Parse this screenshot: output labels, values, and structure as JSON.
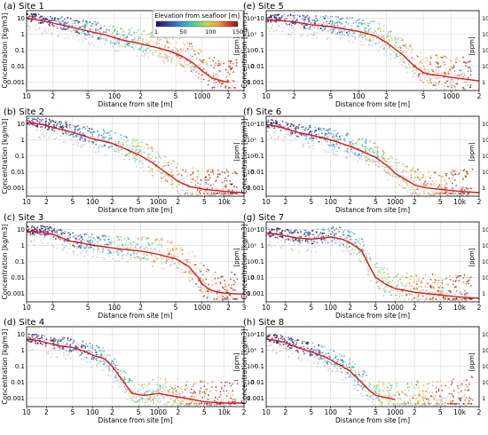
{
  "figure": {
    "colorbar": {
      "title": "Elevation from seafloor [m]",
      "ticks": [
        "1",
        "50",
        "100",
        "150"
      ],
      "colors": [
        "#2a0d4e",
        "#3b3f9a",
        "#2f7fc1",
        "#35b6c8",
        "#60d18f",
        "#c9d84a",
        "#f0a43a",
        "#d9472b",
        "#8b1a1a"
      ]
    },
    "colors": {
      "mean_line": "#e3141b",
      "background_scatter": "#a9a9a9",
      "grid": "#d9d9d9"
    }
  },
  "chart_data": [
    {
      "panel": "a",
      "title": "(a) Site 1",
      "type": "scatter",
      "xlabel": "Distance from site [m]",
      "ylabel": "Concentration [kg/m3]",
      "ylabel_right": "[ppm]",
      "x_scale": "log",
      "xlim": [
        10,
        3000
      ],
      "y_scale": "log",
      "ylim": [
        0.0003,
        30
      ],
      "x_ticks": [
        "10",
        "2",
        "5",
        "100",
        "2",
        "5",
        "1000",
        "2",
        "3"
      ],
      "y_ticks": [
        "10",
        "1",
        "0.1",
        "0.01",
        "0.001"
      ],
      "y_ticks_right": [
        "10⁴",
        "10³",
        "10²",
        "10",
        "1"
      ],
      "mean_line": {
        "x": [
          10,
          12,
          15,
          20,
          30,
          50,
          80,
          120,
          200,
          300,
          450,
          600,
          800,
          1000,
          1300,
          1700,
          2000
        ],
        "y": [
          10,
          9,
          7,
          5,
          3,
          1.6,
          0.9,
          0.45,
          0.25,
          0.15,
          0.08,
          0.04,
          0.015,
          0.005,
          0.0018,
          0.0012,
          0.001
        ]
      }
    },
    {
      "panel": "b",
      "title": "(b) Site 2",
      "type": "scatter",
      "xlabel": "Distance from site [m]",
      "ylabel": "Concentration [kg/m3]",
      "ylabel_right": "[ppm]",
      "x_scale": "log",
      "xlim": [
        10,
        20000
      ],
      "y_scale": "log",
      "ylim": [
        0.0003,
        30
      ],
      "x_ticks": [
        "10",
        "2",
        "5",
        "100",
        "2",
        "5",
        "1000",
        "2",
        "5",
        "10k",
        "2"
      ],
      "y_ticks": [
        "10",
        "1",
        "0.1",
        "0.01",
        "0.001"
      ],
      "y_ticks_right": [
        "10⁴",
        "10³",
        "10²",
        "10",
        "1"
      ],
      "mean_line": {
        "x": [
          10,
          15,
          20,
          30,
          50,
          100,
          200,
          300,
          500,
          800,
          1000,
          1500,
          2000,
          3000,
          5000,
          10000,
          20000
        ],
        "y": [
          12,
          10,
          8,
          5,
          3,
          1.2,
          0.6,
          0.3,
          0.12,
          0.04,
          0.02,
          0.006,
          0.0025,
          0.0012,
          0.0008,
          0.0006,
          0.0005
        ]
      }
    },
    {
      "panel": "c",
      "title": "(c) Site 3",
      "type": "scatter",
      "xlabel": "Distance from site [m]",
      "ylabel": "Concentration [kg/m3]",
      "ylabel_right": "[ppm]",
      "x_scale": "log",
      "xlim": [
        10,
        3000
      ],
      "y_scale": "log",
      "ylim": [
        0.0003,
        30
      ],
      "x_ticks": [
        "10",
        "2",
        "5",
        "100",
        "2",
        "5",
        "1000",
        "2",
        "3"
      ],
      "y_ticks": [
        "10",
        "1",
        "0.1",
        "0.01",
        "0.001"
      ],
      "y_ticks_right": [
        "10⁴",
        "10³",
        "10²",
        "10",
        "1"
      ],
      "mean_line": {
        "x": [
          10,
          15,
          20,
          30,
          50,
          80,
          120,
          200,
          300,
          500,
          700,
          900,
          1000,
          1200,
          1500,
          2000,
          3000
        ],
        "y": [
          8,
          7,
          5,
          2,
          1.2,
          0.8,
          0.6,
          0.45,
          0.3,
          0.15,
          0.05,
          0.01,
          0.004,
          0.0018,
          0.0012,
          0.001,
          0.0009
        ]
      }
    },
    {
      "panel": "d",
      "title": "(d) Site 4",
      "type": "scatter",
      "xlabel": "Distance from site [m]",
      "ylabel": "Concentration [kg/m3]",
      "ylabel_right": "[ppm]",
      "x_scale": "log",
      "xlim": [
        10,
        20000
      ],
      "y_scale": "log",
      "ylim": [
        0.0003,
        30
      ],
      "x_ticks": [
        "10",
        "2",
        "5",
        "100",
        "2",
        "5",
        "1000",
        "2",
        "5",
        "10k",
        "2"
      ],
      "y_ticks": [
        "10",
        "1",
        "0.1",
        "0.01",
        "0.001"
      ],
      "y_ticks_right": [
        "10⁴",
        "10³",
        "10²",
        "10",
        "1"
      ],
      "mean_line": {
        "x": [
          10,
          15,
          20,
          30,
          50,
          80,
          100,
          150,
          200,
          300,
          400,
          600,
          1000,
          2000,
          3000,
          5000,
          10000,
          20000
        ],
        "y": [
          5,
          4,
          3,
          2,
          1.5,
          0.8,
          0.5,
          0.3,
          0.1,
          0.01,
          0.002,
          0.0015,
          0.002,
          0.0012,
          0.0009,
          0.0006,
          0.0005,
          0.0005
        ]
      }
    },
    {
      "panel": "e",
      "title": "(e) Site 5",
      "type": "scatter",
      "xlabel": "Distance from site [m]",
      "ylabel": "Concentration [kg/m3]",
      "ylabel_right": "[ppm]",
      "x_scale": "log",
      "xlim": [
        10,
        2000
      ],
      "y_scale": "log",
      "ylim": [
        0.0003,
        30
      ],
      "x_ticks": [
        "10",
        "2",
        "5",
        "100",
        "2",
        "5",
        "1000",
        "2"
      ],
      "y_ticks": [
        "10",
        "1",
        "0.1",
        "0.01",
        "0.001"
      ],
      "y_ticks_right": [
        "10⁴",
        "10³",
        "10²",
        "10",
        "1"
      ],
      "mean_line": {
        "x": [
          10,
          15,
          20,
          30,
          50,
          100,
          150,
          200,
          300,
          400,
          500,
          600,
          800,
          1000,
          1500,
          2000
        ],
        "y": [
          8,
          7,
          6,
          4,
          3,
          1.5,
          0.8,
          0.3,
          0.05,
          0.01,
          0.004,
          0.003,
          0.0025,
          0.002,
          0.0015,
          0.0012
        ]
      }
    },
    {
      "panel": "f",
      "title": "(f) Site 6",
      "type": "scatter",
      "xlabel": "Distance from site [m]",
      "ylabel": "Concentration [kg/m3]",
      "ylabel_right": "[ppm]",
      "x_scale": "log",
      "xlim": [
        10,
        20000
      ],
      "y_scale": "log",
      "ylim": [
        0.0003,
        30
      ],
      "x_ticks": [
        "10",
        "2",
        "5",
        "100",
        "2",
        "5",
        "1000",
        "2",
        "5",
        "10k",
        "2"
      ],
      "y_ticks": [
        "10",
        "1",
        "0.1",
        "0.01",
        "0.001"
      ],
      "y_ticks_right": [
        "10⁴",
        "10³",
        "10²",
        "10",
        "1"
      ],
      "mean_line": {
        "x": [
          10,
          15,
          20,
          30,
          50,
          100,
          200,
          300,
          500,
          800,
          1000,
          1500,
          2000,
          3000,
          5000,
          10000,
          20000
        ],
        "y": [
          9,
          7,
          5,
          3,
          2,
          1,
          0.4,
          0.2,
          0.08,
          0.02,
          0.008,
          0.003,
          0.0015,
          0.001,
          0.0008,
          0.0006,
          0.0005
        ]
      }
    },
    {
      "panel": "g",
      "title": "(g) Site 7",
      "type": "scatter",
      "xlabel": "Distance from site [m]",
      "ylabel": "Concentration [kg/m3]",
      "ylabel_right": "[ppm]",
      "x_scale": "log",
      "xlim": [
        10,
        20000
      ],
      "y_scale": "log",
      "ylim": [
        0.0003,
        30
      ],
      "x_ticks": [
        "10",
        "2",
        "5",
        "100",
        "2",
        "5",
        "1000",
        "2",
        "5",
        "10k",
        "2"
      ],
      "y_ticks": [
        "10",
        "1",
        "0.1",
        "0.01",
        "0.001"
      ],
      "y_ticks_right": [
        "10⁴",
        "10³",
        "10²",
        "10",
        "1"
      ],
      "mean_line": {
        "x": [
          10,
          15,
          20,
          30,
          50,
          80,
          100,
          150,
          200,
          300,
          400,
          500,
          700,
          1000,
          2000,
          5000,
          10000,
          20000
        ],
        "y": [
          6,
          5,
          4,
          3,
          2.5,
          3,
          3.5,
          2.5,
          1.5,
          0.5,
          0.05,
          0.01,
          0.004,
          0.002,
          0.0012,
          0.0008,
          0.0006,
          0.0005
        ]
      }
    },
    {
      "panel": "h",
      "title": "(h) Site 8",
      "type": "scatter",
      "xlabel": "Distance from site [m]",
      "ylabel": "Concentration [kg/m3]",
      "ylabel_right": "[ppm]",
      "x_scale": "log",
      "xlim": [
        10,
        20000
      ],
      "y_scale": "log",
      "ylim": [
        0.0003,
        30
      ],
      "x_ticks": [
        "10",
        "2",
        "5",
        "100",
        "2",
        "5",
        "1000",
        "2",
        "5",
        "10k",
        "2"
      ],
      "y_ticks": [
        "10",
        "1",
        "0.1",
        "0.01",
        "0.001"
      ],
      "y_ticks_right": [
        "10⁴",
        "10³",
        "10²",
        "10",
        "1"
      ],
      "mean_line": {
        "x": [
          10,
          15,
          20,
          30,
          50,
          80,
          100,
          150,
          200,
          300,
          400,
          500,
          800,
          1000
        ],
        "y": [
          5,
          4,
          3,
          1.5,
          0.8,
          0.4,
          0.25,
          0.1,
          0.05,
          0.01,
          0.003,
          0.0015,
          0.001,
          0.0008
        ]
      }
    }
  ]
}
